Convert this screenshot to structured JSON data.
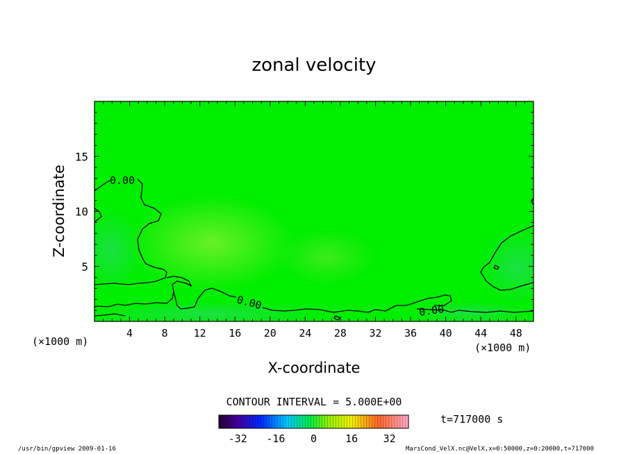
{
  "chart_data": {
    "type": "heatmap",
    "title": "zonal velocity",
    "xlabel": "X-coordinate",
    "ylabel": "Z-coordinate",
    "x_unit_label": "(×1000 m)",
    "xlim": [
      0,
      50
    ],
    "ylim": [
      0,
      20
    ],
    "x_ticks": [
      "4",
      "8",
      "12",
      "16",
      "20",
      "24",
      "28",
      "32",
      "36",
      "40",
      "44",
      "48"
    ],
    "y_ticks": [
      "5",
      "10",
      "15"
    ],
    "contour_interval_label": "CONTOUR INTERVAL = 5.000E+00",
    "contour_labels": [
      "0.00",
      "0.00",
      "0.00"
    ],
    "time_label": "t=717000 s",
    "colorbar": {
      "range": [
        -40,
        40
      ],
      "ticks": [
        "-32",
        "-16",
        "0",
        "16",
        "32"
      ]
    },
    "field_color": "#00ee00",
    "grid": false
  },
  "footer": {
    "left": "/usr/bin/gpview   2009-01-16",
    "right": "MarsCond_VelX.nc@VelX,x=0:50000,z=0:20000,t=717000"
  }
}
